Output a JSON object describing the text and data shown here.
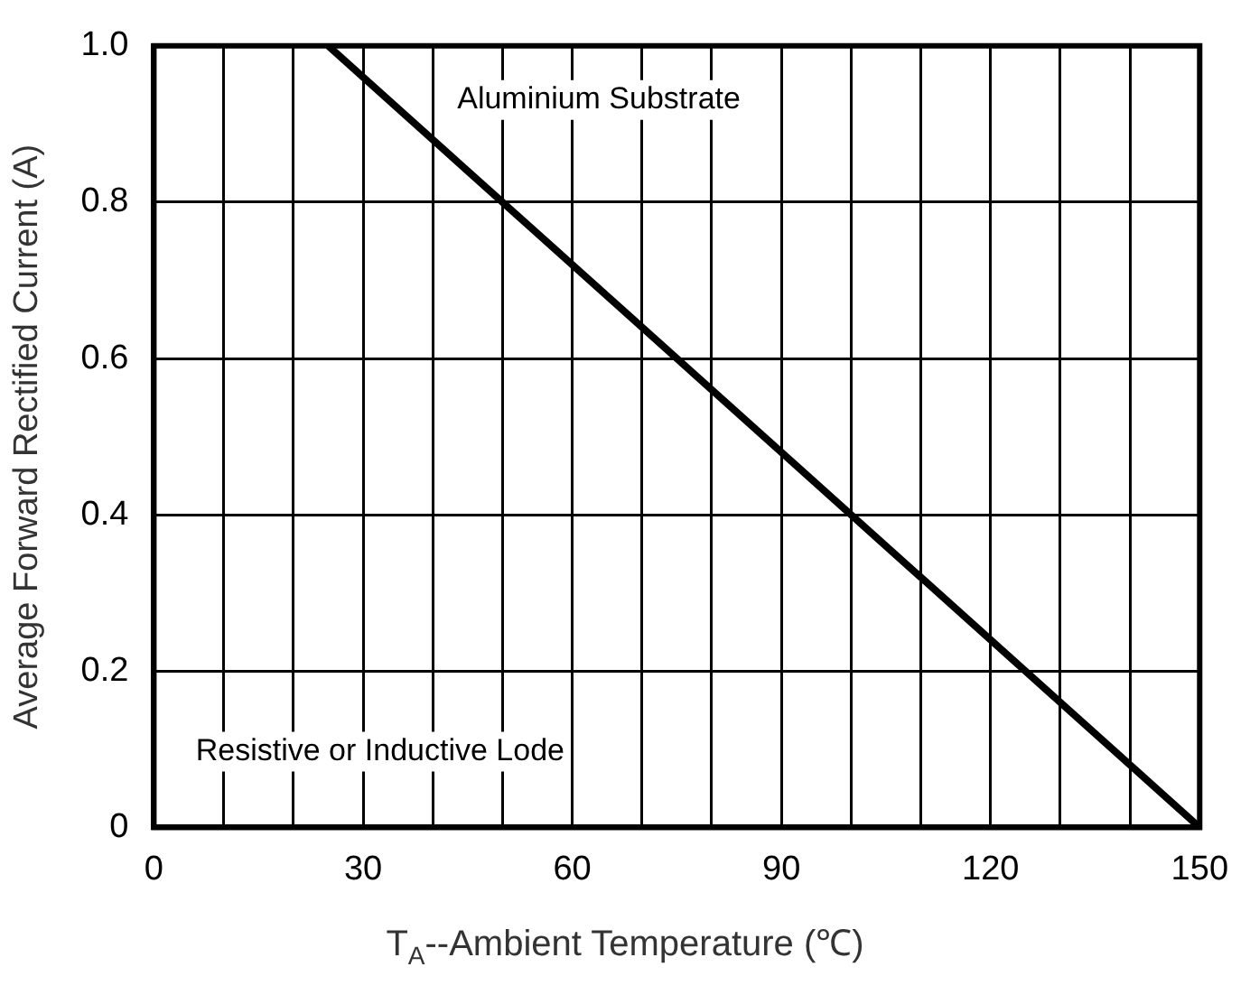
{
  "chart_data": {
    "type": "line",
    "xlabel": "T$_{A}$--Ambient Temperature (℃)",
    "ylabel": "Average Forward Rectified Current (A)",
    "annotations": [
      "Aluminium Substrate",
      "Resistive or Inductive Lode"
    ],
    "series": [
      {
        "x": [
          25,
          150
        ],
        "values": [
          1.0,
          0
        ],
        "color": "#000000"
      }
    ],
    "xlim": [
      0,
      150
    ],
    "xticks": [
      0,
      {
        "value": 10,
        "label": null
      },
      {
        "value": 20,
        "label": null
      },
      30,
      {
        "value": 40,
        "label": null
      },
      {
        "value": 50,
        "label": null
      },
      60,
      {
        "value": 70,
        "label": null
      },
      {
        "value": 80,
        "label": null
      },
      90,
      {
        "value": 100,
        "label": null
      },
      {
        "value": 110,
        "label": null
      },
      120,
      {
        "value": 130,
        "label": null
      },
      {
        "value": 140,
        "label": null
      },
      150
    ],
    "ylim": [
      0,
      1.0
    ],
    "yticks": [
      0,
      0.2,
      0.4,
      0.6,
      0.8,
      {
        "value": 1.0,
        "label": "1.0"
      }
    ],
    "grid": true,
    "legend": false,
    "marker": "none",
    "line_style": "solid"
  }
}
